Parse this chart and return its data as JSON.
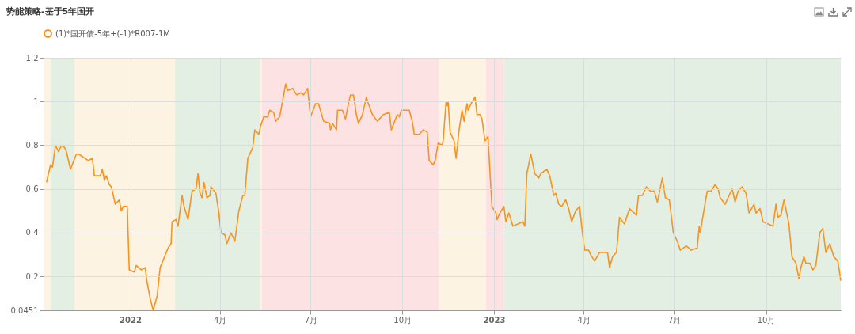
{
  "chart_data": {
    "type": "line",
    "title": "势能策略-基于5年国开",
    "legend": "top",
    "grid": true,
    "xlim": [
      "2021-10-06",
      "2023-12-15"
    ],
    "xticks": [
      {
        "value": "2022-01-01",
        "label": "2022"
      },
      {
        "value": "2022-04-01",
        "label": "4月"
      },
      {
        "value": "2022-07-01",
        "label": "7月"
      },
      {
        "value": "2022-10-01",
        "label": "10月"
      },
      {
        "value": "2023-01-01",
        "label": "2023"
      },
      {
        "value": "2023-04-01",
        "label": "4月"
      },
      {
        "value": "2023-07-01",
        "label": "7月"
      },
      {
        "value": "2023-10-01",
        "label": "10月"
      }
    ],
    "ylim": [
      0.0451,
      1.2
    ],
    "yticks": [
      0.0451,
      0.2,
      0.4,
      0.6,
      0.8,
      1,
      1.2
    ],
    "bands": [
      {
        "axis": "x",
        "from": "2021-10-06",
        "to": "2021-10-13",
        "color": "#fdf3e2"
      },
      {
        "axis": "x",
        "from": "2021-10-13",
        "to": "2021-11-06",
        "color": "#e3efe3"
      },
      {
        "axis": "x",
        "from": "2021-11-06",
        "to": "2022-02-15",
        "color": "#fdf3e2"
      },
      {
        "axis": "x",
        "from": "2022-02-15",
        "to": "2022-05-11",
        "color": "#e3efe3"
      },
      {
        "axis": "x",
        "from": "2022-05-11",
        "to": "2022-05-13",
        "color": "#fdf3e2"
      },
      {
        "axis": "x",
        "from": "2022-05-13",
        "to": "2022-11-07",
        "color": "#fde2e4"
      },
      {
        "axis": "x",
        "from": "2022-11-07",
        "to": "2022-12-24",
        "color": "#fdf3e2"
      },
      {
        "axis": "x",
        "from": "2022-12-24",
        "to": "2023-01-11",
        "color": "#fde2e4"
      },
      {
        "axis": "x",
        "from": "2023-01-11",
        "to": "2023-12-15",
        "color": "#e3efe3"
      }
    ],
    "series": [
      {
        "name": "(1)*国开债-5年+(-1)*R007-1M",
        "color": "#f7931e",
        "x": [
          "2021-10-09",
          "2021-10-13",
          "2021-10-15",
          "2021-10-18",
          "2021-10-21",
          "2021-10-24",
          "2021-10-27",
          "2021-10-29",
          "2021-11-02",
          "2021-11-08",
          "2021-11-10",
          "2021-11-20",
          "2021-11-24",
          "2021-11-26",
          "2021-12-02",
          "2021-12-04",
          "2021-12-06",
          "2021-12-08",
          "2021-12-11",
          "2021-12-13",
          "2021-12-17",
          "2021-12-21",
          "2021-12-23",
          "2021-12-25",
          "2021-12-29",
          "2021-12-31",
          "2022-01-05",
          "2022-01-07",
          "2022-01-12",
          "2022-01-16",
          "2022-01-18",
          "2022-01-21",
          "2022-01-24",
          "2022-01-28",
          "2022-01-31",
          "2022-02-08",
          "2022-02-11",
          "2022-02-12",
          "2022-02-16",
          "2022-02-18",
          "2022-02-22",
          "2022-02-24",
          "2022-02-28",
          "2022-03-04",
          "2022-03-08",
          "2022-03-10",
          "2022-03-12",
          "2022-03-14",
          "2022-03-16",
          "2022-03-19",
          "2022-03-22",
          "2022-03-23",
          "2022-03-28",
          "2022-03-31",
          "2022-04-02",
          "2022-04-06",
          "2022-04-08",
          "2022-04-12",
          "2022-04-16",
          "2022-04-20",
          "2022-04-24",
          "2022-04-26",
          "2022-04-29",
          "2022-05-04",
          "2022-05-06",
          "2022-05-10",
          "2022-05-12",
          "2022-05-15",
          "2022-05-19",
          "2022-05-21",
          "2022-05-25",
          "2022-05-27",
          "2022-05-31",
          "2022-06-06",
          "2022-06-08",
          "2022-06-13",
          "2022-06-17",
          "2022-06-21",
          "2022-06-24",
          "2022-06-28",
          "2022-07-01",
          "2022-07-06",
          "2022-07-09",
          "2022-07-14",
          "2022-07-20",
          "2022-07-21",
          "2022-07-23",
          "2022-07-27",
          "2022-07-28",
          "2022-08-02",
          "2022-08-05",
          "2022-08-08",
          "2022-08-10",
          "2022-08-13",
          "2022-08-16",
          "2022-08-18",
          "2022-08-22",
          "2022-08-26",
          "2022-08-28",
          "2022-09-01",
          "2022-09-06",
          "2022-09-12",
          "2022-09-18",
          "2022-09-20",
          "2022-09-26",
          "2022-09-28",
          "2022-09-30",
          "2022-10-08",
          "2022-10-11",
          "2022-10-13",
          "2022-10-18",
          "2022-10-22",
          "2022-10-26",
          "2022-10-28",
          "2022-11-01",
          "2022-11-03",
          "2022-11-06",
          "2022-11-10",
          "2022-11-11",
          "2022-11-14",
          "2022-11-15",
          "2022-11-16",
          "2022-11-18",
          "2022-11-22",
          "2022-11-24",
          "2022-11-27",
          "2022-11-30",
          "2022-12-02",
          "2022-12-05",
          "2022-12-06",
          "2022-12-09",
          "2022-12-13",
          "2022-12-15",
          "2022-12-18",
          "2022-12-20",
          "2022-12-23",
          "2022-12-26",
          "2022-12-30",
          "2023-01-03",
          "2023-01-04",
          "2023-01-07",
          "2023-01-11",
          "2023-01-13",
          "2023-01-16",
          "2023-01-20",
          "2023-01-30",
          "2023-02-01",
          "2023-02-03",
          "2023-02-07",
          "2023-02-11",
          "2023-02-15",
          "2023-02-17",
          "2023-02-23",
          "2023-02-26",
          "2023-03-02",
          "2023-03-04",
          "2023-03-07",
          "2023-03-10",
          "2023-03-14",
          "2023-03-17",
          "2023-03-20",
          "2023-03-24",
          "2023-03-28",
          "2023-03-30",
          "2023-04-02",
          "2023-04-06",
          "2023-04-08",
          "2023-04-12",
          "2023-04-17",
          "2023-04-25",
          "2023-04-27",
          "2023-04-30",
          "2023-05-04",
          "2023-05-07",
          "2023-05-12",
          "2023-05-17",
          "2023-05-24",
          "2023-05-26",
          "2023-05-30",
          "2023-06-03",
          "2023-06-07",
          "2023-06-11",
          "2023-06-14",
          "2023-06-19",
          "2023-06-22",
          "2023-06-26",
          "2023-06-30",
          "2023-07-04",
          "2023-07-07",
          "2023-07-13",
          "2023-07-18",
          "2023-07-24",
          "2023-07-26",
          "2023-07-27",
          "2023-07-31",
          "2023-08-03",
          "2023-08-07",
          "2023-08-11",
          "2023-08-14",
          "2023-08-16",
          "2023-08-21",
          "2023-08-24",
          "2023-08-28",
          "2023-08-31",
          "2023-09-03",
          "2023-09-07",
          "2023-09-11",
          "2023-09-14",
          "2023-09-19",
          "2023-09-21",
          "2023-09-25",
          "2023-09-28",
          "2023-10-08",
          "2023-10-11",
          "2023-10-13",
          "2023-10-16",
          "2023-10-19",
          "2023-10-24",
          "2023-10-27",
          "2023-10-31",
          "2023-11-03",
          "2023-11-05",
          "2023-11-08",
          "2023-11-10",
          "2023-11-14",
          "2023-11-17",
          "2023-11-20",
          "2023-11-24",
          "2023-11-27",
          "2023-11-30",
          "2023-12-04",
          "2023-12-08",
          "2023-12-12",
          "2023-12-15"
        ],
        "values": [
          0.63,
          0.71,
          0.7,
          0.8,
          0.77,
          0.8,
          0.79,
          0.77,
          0.69,
          0.76,
          0.76,
          0.73,
          0.74,
          0.66,
          0.66,
          0.69,
          0.64,
          0.66,
          0.62,
          0.61,
          0.53,
          0.55,
          0.5,
          0.52,
          0.52,
          0.23,
          0.22,
          0.25,
          0.23,
          0.24,
          0.17,
          0.1,
          0.0451,
          0.11,
          0.24,
          0.33,
          0.35,
          0.45,
          0.46,
          0.43,
          0.57,
          0.52,
          0.46,
          0.59,
          0.6,
          0.67,
          0.58,
          0.56,
          0.63,
          0.56,
          0.57,
          0.61,
          0.58,
          0.49,
          0.4,
          0.39,
          0.35,
          0.4,
          0.36,
          0.5,
          0.57,
          0.57,
          0.74,
          0.79,
          0.87,
          0.85,
          0.89,
          0.93,
          0.93,
          0.96,
          0.95,
          0.91,
          0.93,
          1.08,
          1.05,
          1.06,
          1.03,
          1.04,
          1.03,
          1.06,
          0.93,
          0.99,
          0.99,
          0.91,
          0.9,
          0.87,
          0.9,
          0.87,
          0.96,
          0.96,
          0.92,
          0.99,
          1.03,
          1.03,
          0.94,
          0.9,
          0.94,
          1.02,
          0.99,
          0.94,
          0.91,
          0.94,
          0.95,
          0.87,
          0.94,
          0.93,
          0.96,
          0.96,
          0.91,
          0.85,
          0.85,
          0.87,
          0.86,
          0.73,
          0.71,
          0.73,
          0.81,
          0.8,
          0.82,
          1.0,
          0.98,
          1.0,
          0.86,
          0.82,
          0.74,
          0.87,
          0.96,
          0.91,
          0.99,
          0.96,
          0.99,
          1.02,
          0.94,
          0.94,
          0.92,
          0.82,
          0.84,
          0.52,
          0.49,
          0.46,
          0.49,
          0.52,
          0.45,
          0.49,
          0.43,
          0.45,
          0.43,
          0.67,
          0.76,
          0.67,
          0.65,
          0.67,
          0.69,
          0.66,
          0.57,
          0.58,
          0.53,
          0.52,
          0.55,
          0.51,
          0.45,
          0.5,
          0.52,
          0.43,
          0.32,
          0.32,
          0.3,
          0.27,
          0.31,
          0.31,
          0.24,
          0.29,
          0.31,
          0.47,
          0.44,
          0.51,
          0.48,
          0.57,
          0.57,
          0.61,
          0.59,
          0.59,
          0.54,
          0.65,
          0.56,
          0.55,
          0.4,
          0.36,
          0.32,
          0.34,
          0.32,
          0.33,
          0.43,
          0.4,
          0.51,
          0.59,
          0.59,
          0.62,
          0.6,
          0.56,
          0.53,
          0.56,
          0.6,
          0.54,
          0.59,
          0.61,
          0.58,
          0.49,
          0.53,
          0.49,
          0.51,
          0.45,
          0.43,
          0.53,
          0.47,
          0.48,
          0.55,
          0.44,
          0.29,
          0.26,
          0.19,
          0.24,
          0.29,
          0.26,
          0.26,
          0.23,
          0.25,
          0.4,
          0.42,
          0.31,
          0.35,
          0.29,
          0.27,
          0.18
        ]
      }
    ]
  }
}
